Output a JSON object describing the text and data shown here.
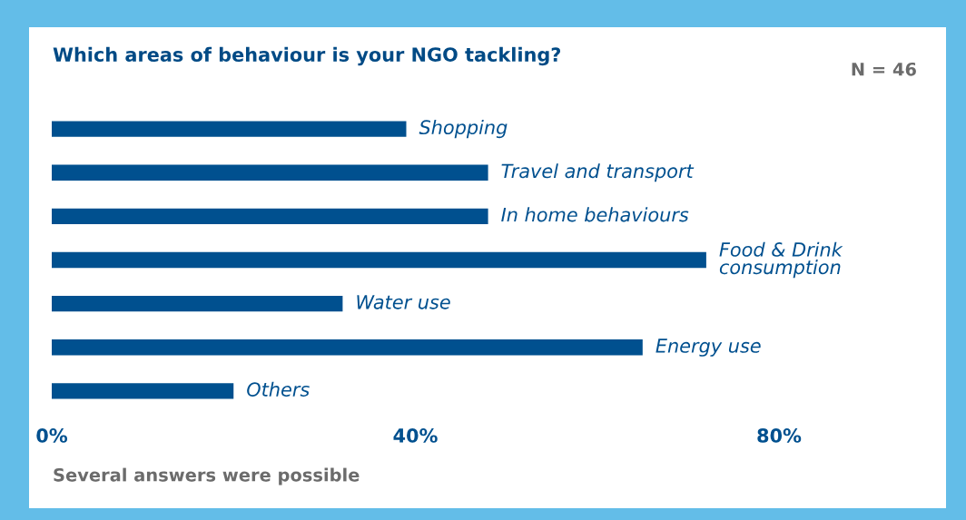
{
  "chart_data": {
    "type": "bar",
    "orientation": "horizontal",
    "title": "Which areas of behaviour is your NGO tackling?",
    "categories": [
      "Shopping",
      "Travel and transport",
      "In home behaviours",
      "Food & Drink\nconsumption",
      "Water use",
      "Energy use",
      "Others"
    ],
    "values": [
      39,
      48,
      48,
      72,
      32,
      65,
      20
    ],
    "color": "#00508f",
    "xlim": [
      0,
      80
    ],
    "xticks": [
      {
        "value": 0,
        "label": "0%"
      },
      {
        "value": 40,
        "label": "40%"
      },
      {
        "value": 80,
        "label": "80%"
      }
    ],
    "grid": false,
    "annotations": [
      "N = 46",
      "Several answers were possible"
    ]
  }
}
